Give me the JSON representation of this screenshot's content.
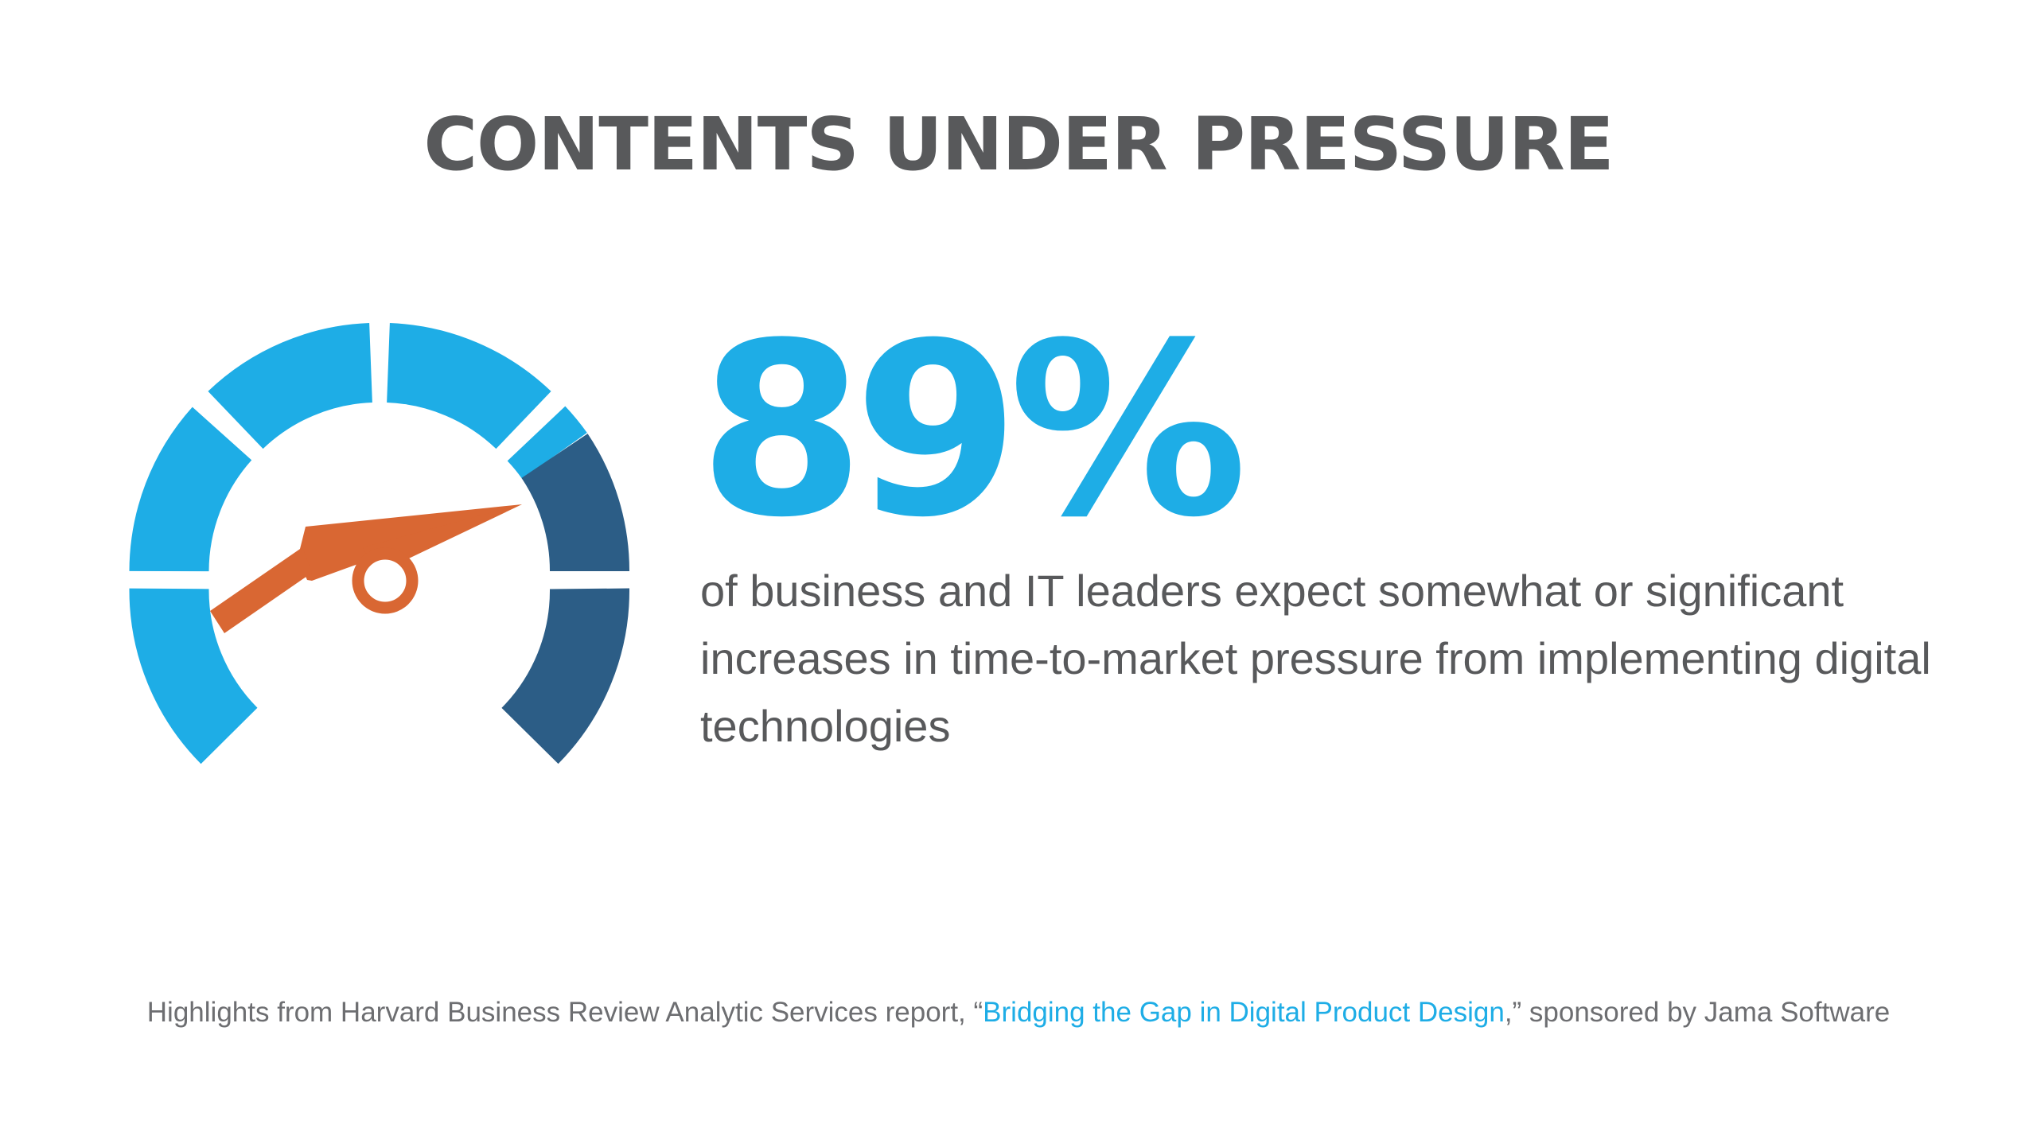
{
  "title": "CONTENTS UNDER PRESSURE",
  "stat": {
    "value": "89%",
    "description": "of business and IT leaders expect somewhat or significant increases in time-to-market pressure from implementing digital technologies"
  },
  "footer": {
    "prefix": "Highlights from Harvard Business Review Analytic Services report, “",
    "link_text": "Bridging the Gap in Digital Product Design",
    "suffix": ",” sponsored by Jama Software"
  },
  "gauge": {
    "icon": "speedometer-icon",
    "light_color": "#1eade6",
    "dark_color": "#2c5d86",
    "needle_color": "#d96733"
  }
}
